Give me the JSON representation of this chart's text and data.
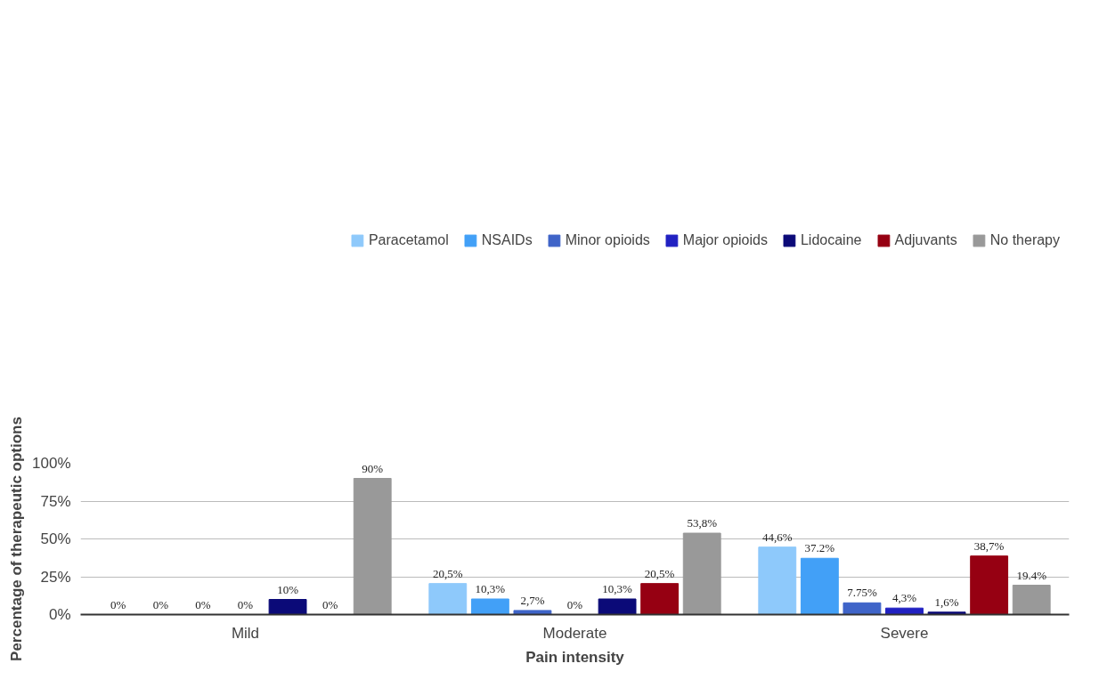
{
  "chart_data": {
    "type": "bar",
    "xlabel": "Pain intensity",
    "ylabel": "Percentage of therapeutic options",
    "categories": [
      "Mild",
      "Moderate",
      "Severe"
    ],
    "series": [
      {
        "name": "Paracetamol",
        "color": "#8ec9fb",
        "values": [
          0,
          20.5,
          44.6
        ],
        "value_labels": [
          "0%",
          "20,5%",
          "44,6%"
        ]
      },
      {
        "name": "NSAIDs",
        "color": "#42a0f7",
        "values": [
          0,
          10.3,
          37.2
        ],
        "value_labels": [
          "0%",
          "10,3%",
          "37.2%"
        ]
      },
      {
        "name": "Minor opioids",
        "color": "#3f64c8",
        "values": [
          0,
          2.7,
          7.75
        ],
        "value_labels": [
          "0%",
          "2,7%",
          "7.75%"
        ]
      },
      {
        "name": "Major opioids",
        "color": "#2121c2",
        "values": [
          0,
          0,
          4.3
        ],
        "value_labels": [
          "0%",
          "0%",
          "4,3%"
        ]
      },
      {
        "name": "Lidocaine",
        "color": "#0b0a78",
        "values": [
          10,
          10.3,
          1.6
        ],
        "value_labels": [
          "10%",
          "10,3%",
          "1,6%"
        ]
      },
      {
        "name": "Adjuvants",
        "color": "#960012",
        "values": [
          0,
          20.5,
          38.7
        ],
        "value_labels": [
          "0%",
          "20,5%",
          "38,7%"
        ]
      },
      {
        "name": "No therapy",
        "color": "#999999",
        "values": [
          90,
          53.8,
          19.4
        ],
        "value_labels": [
          "90%",
          "53,8%",
          "19.4%"
        ]
      }
    ],
    "ylim": [
      0,
      100
    ],
    "yticks": [
      {
        "value": 0,
        "label": "0%"
      },
      {
        "value": 25,
        "label": "25%"
      },
      {
        "value": 50,
        "label": "50%"
      },
      {
        "value": 75,
        "label": "75%"
      },
      {
        "value": 100,
        "label": "100%"
      }
    ],
    "grid": "y",
    "legend": "top"
  }
}
